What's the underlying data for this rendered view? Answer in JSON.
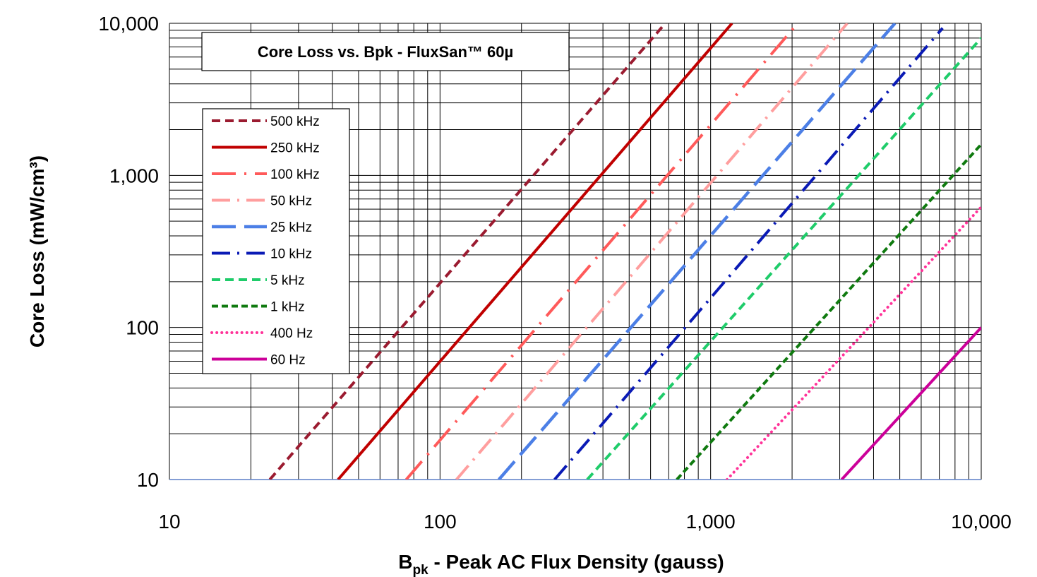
{
  "chart_data": {
    "type": "line",
    "title": "Core Loss vs. Bpk - FluxSan™ 60µ",
    "xlabel_main": "B",
    "xlabel_sub": "pk",
    "xlabel_rest": " - Peak AC Flux Density (gauss)",
    "ylabel": "Core Loss (mW/cm³)",
    "x_scale": "log",
    "y_scale": "log",
    "xlim": [
      10,
      10000
    ],
    "ylim": [
      10,
      10000
    ],
    "grid": true,
    "legend_position": "top-left",
    "x_tick_labels": [
      "10",
      "100",
      "1,000",
      "10,000"
    ],
    "y_tick_labels": [
      "10",
      "100",
      "1,000",
      "10,000"
    ],
    "series": [
      {
        "name": "500 kHz",
        "color": "#9B1B30",
        "dash": "dash",
        "x": [
          23.5,
          680
        ],
        "y": [
          10,
          10000
        ]
      },
      {
        "name": "250 kHz",
        "color": "#C00000",
        "dash": "solid",
        "x": [
          42,
          1200
        ],
        "y": [
          10,
          10000
        ]
      },
      {
        "name": "100 kHz",
        "color": "#FF5A5A",
        "dash": "longdashdot",
        "x": [
          75,
          2100
        ],
        "y": [
          10,
          10000
        ]
      },
      {
        "name": "50 kHz",
        "color": "#FF9E9E",
        "dash": "dashdot",
        "x": [
          115,
          3200
        ],
        "y": [
          10,
          10000
        ]
      },
      {
        "name": "25 kHz",
        "color": "#4C7FE6",
        "dash": "longdash",
        "x": [
          165,
          4800
        ],
        "y": [
          10,
          10000
        ]
      },
      {
        "name": "10 kHz",
        "color": "#0A1AB5",
        "dash": "dashdot",
        "x": [
          265,
          7200
        ],
        "y": [
          10,
          9300
        ]
      },
      {
        "name": "5 kHz",
        "color": "#1FCC6A",
        "dash": "dash",
        "x": [
          350,
          10000
        ],
        "y": [
          10,
          8000
        ]
      },
      {
        "name": "1 kHz",
        "color": "#0F7A0F",
        "dash": "shortdash",
        "x": [
          750,
          10000
        ],
        "y": [
          10,
          1600
        ]
      },
      {
        "name": "400 Hz",
        "color": "#FF3399",
        "dash": "dot",
        "x": [
          1150,
          10000
        ],
        "y": [
          10,
          620
        ]
      },
      {
        "name": "60 Hz",
        "color": "#CC0099",
        "dash": "solid",
        "x": [
          3050,
          10000
        ],
        "y": [
          10,
          100
        ]
      }
    ]
  }
}
